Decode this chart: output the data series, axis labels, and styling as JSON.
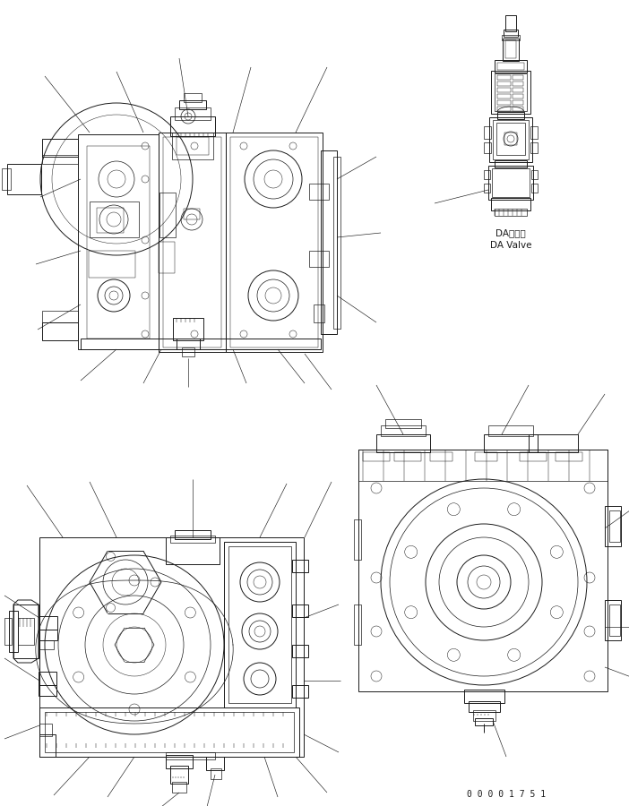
{
  "bg_color": "#ffffff",
  "line_color": "#1a1a1a",
  "fig_width": 7.02,
  "fig_height": 9.0,
  "dpi": 100,
  "da_valve_label_jp": "DAバルブ",
  "da_valve_label_en": "DA Valve",
  "part_number": "0 0 0 0 1 7 5 1",
  "lw_main": 0.7,
  "lw_med": 0.5,
  "lw_thin": 0.35,
  "lw_annot": 0.45
}
